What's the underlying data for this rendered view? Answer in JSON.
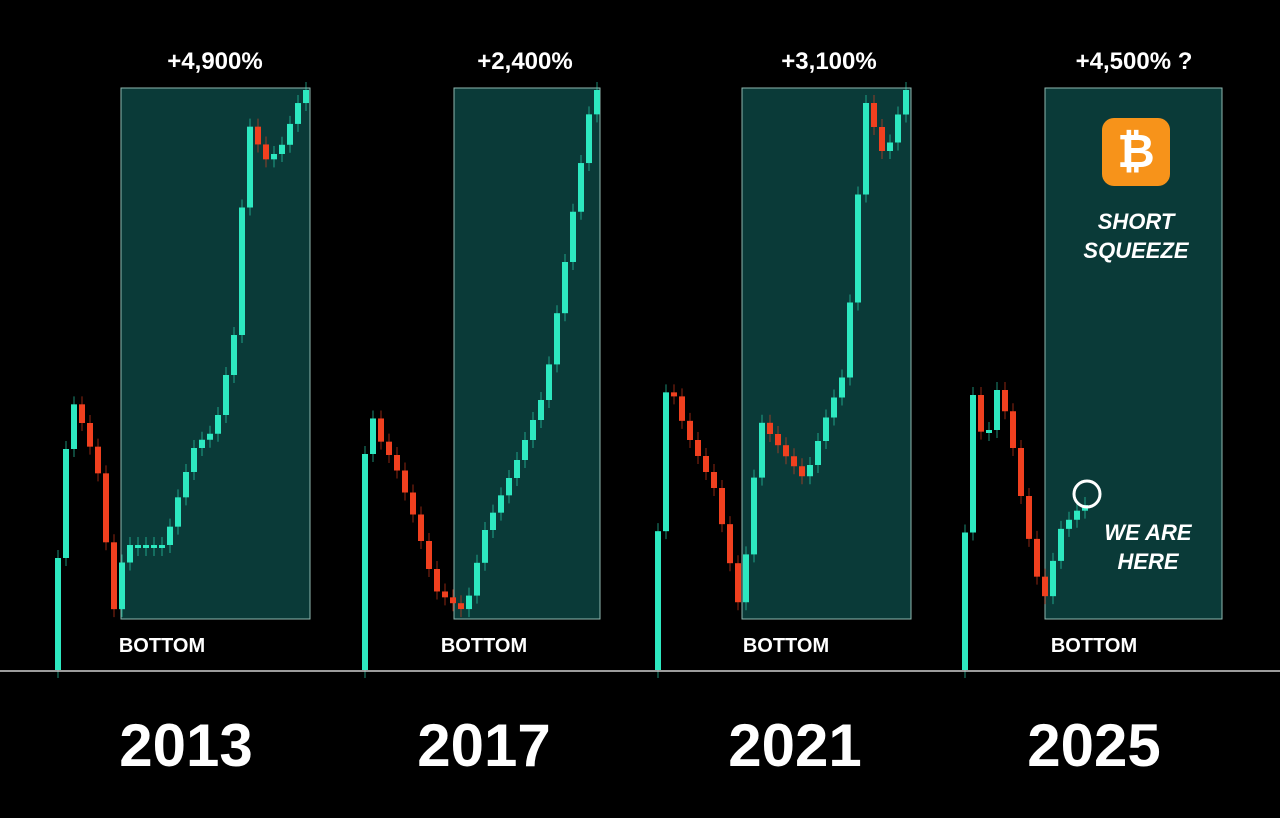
{
  "panels": [
    {
      "gain": "+4,900%",
      "bottom_label": "BOTTOM",
      "year": "2013"
    },
    {
      "gain": "+2,400%",
      "bottom_label": "BOTTOM",
      "year": "2017"
    },
    {
      "gain": "+3,100%",
      "bottom_label": "BOTTOM",
      "year": "2021"
    },
    {
      "gain": "+4,500% ?",
      "bottom_label": "BOTTOM",
      "year": "2025"
    }
  ],
  "callout": {
    "icon": "₿",
    "title_lines": [
      "SHORT",
      "SQUEEZE"
    ],
    "marker_lines": [
      "WE ARE",
      "HERE"
    ]
  }
}
